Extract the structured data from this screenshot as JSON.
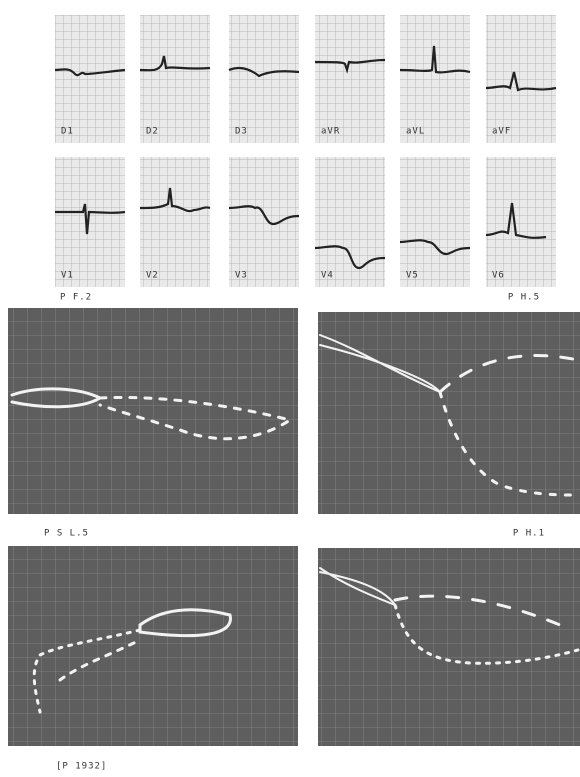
{
  "leads": [
    "D1",
    "D2",
    "D3",
    "aVR",
    "aVL",
    "aVF",
    "V1",
    "V2",
    "V3",
    "V4",
    "V5",
    "V6"
  ],
  "captions": {
    "top_left": "P F.2",
    "top_right": "P H.5",
    "middle_left": "P S L.5",
    "middle_right": "P H.1",
    "bottom_left": "[P 1932]"
  }
}
